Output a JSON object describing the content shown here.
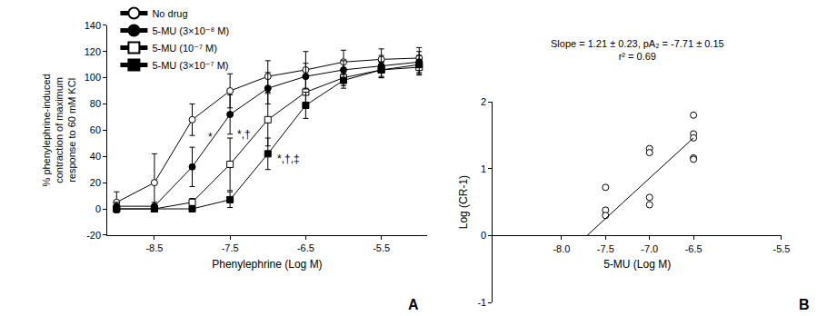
{
  "chart_data": [
    {
      "type": "line",
      "label": "A",
      "xlabel": "Phenylephrine (Log M)",
      "ylabel": "% phenylephrine-induced\ncontraction of maximum\nresponse to 60 mM KCl",
      "x": [
        -9,
        -8.5,
        -8,
        -7.5,
        -7,
        -6.5,
        -6,
        -5.5,
        -5
      ],
      "xlim": [
        -9.12,
        -4.9
      ],
      "xticks": [
        -8.5,
        -7.5,
        -6.5,
        -5.5
      ],
      "ylim": [
        -20,
        140
      ],
      "yticks": [
        -20,
        0,
        20,
        40,
        60,
        80,
        100,
        120,
        140
      ],
      "legend": "top left",
      "series": [
        {
          "name": "No drug",
          "color": "#000000",
          "marker": "open-circle",
          "values": [
            5,
            20,
            68,
            90,
            101,
            106,
            112,
            114,
            115
          ],
          "errors": [
            8,
            22,
            12,
            13,
            12,
            14,
            9,
            8,
            8
          ]
        },
        {
          "name": "5-MU (3×10⁻⁸ M)",
          "color": "#000000",
          "marker": "filled-circle",
          "values": [
            2,
            2,
            32,
            72,
            92,
            101,
            106,
            109,
            112
          ],
          "errors": [
            3,
            3,
            15,
            15,
            12,
            10,
            7,
            8,
            8
          ]
        },
        {
          "name": "5-MU (10⁻⁷ M)",
          "color": "#000000",
          "marker": "open-square",
          "values": [
            0,
            0,
            5,
            34,
            68,
            89,
            100,
            106,
            108
          ],
          "errors": [
            2,
            2,
            3,
            20,
            20,
            12,
            6,
            6,
            6
          ]
        },
        {
          "name": "5-MU (3×10⁻⁷ M)",
          "color": "#000000",
          "marker": "filled-square",
          "values": [
            0,
            0,
            0,
            7,
            42,
            79,
            98,
            106,
            110
          ],
          "errors": [
            2,
            2,
            2,
            6,
            12,
            10,
            6,
            6,
            7
          ]
        }
      ],
      "annotations": [
        {
          "x": -7.81,
          "y": 55,
          "text": "*"
        },
        {
          "x": -7.43,
          "y": 57,
          "text": "*,†"
        },
        {
          "x": -6.9,
          "y": 38,
          "text": "*,†,‡"
        }
      ]
    },
    {
      "type": "scatter",
      "label": "B",
      "title": "Slope = 1.21 ± 0.23, pA₂ = -7.71 ± 0.15\nr² = 0.69",
      "xlabel": "5-MU (Log M)",
      "ylabel": "Log (CR-1)",
      "x": [
        -7.5,
        -7.5,
        -7.5,
        -7.0,
        -7.0,
        -7.0,
        -7.0,
        -6.5,
        -6.5,
        -6.5,
        -6.5,
        -6.5
      ],
      "values": [
        0.72,
        0.38,
        0.3,
        1.3,
        1.24,
        0.57,
        0.46,
        1.8,
        1.52,
        1.46,
        1.16,
        1.14
      ],
      "color": "#000000",
      "marker": "open-circle",
      "fit": {
        "x": [
          -7.71,
          -6.5
        ],
        "values": [
          0,
          1.46
        ]
      },
      "xlim": [
        -8.78,
        -5.5
      ],
      "xticks": [
        {
          "value": -8,
          "label": "-8.0"
        },
        -7.5,
        {
          "value": -7,
          "label": "-7.0"
        },
        -6.5,
        -5.5
      ],
      "ylim": [
        -1,
        2
      ],
      "yticks": [
        -1,
        0,
        1,
        2
      ]
    }
  ]
}
